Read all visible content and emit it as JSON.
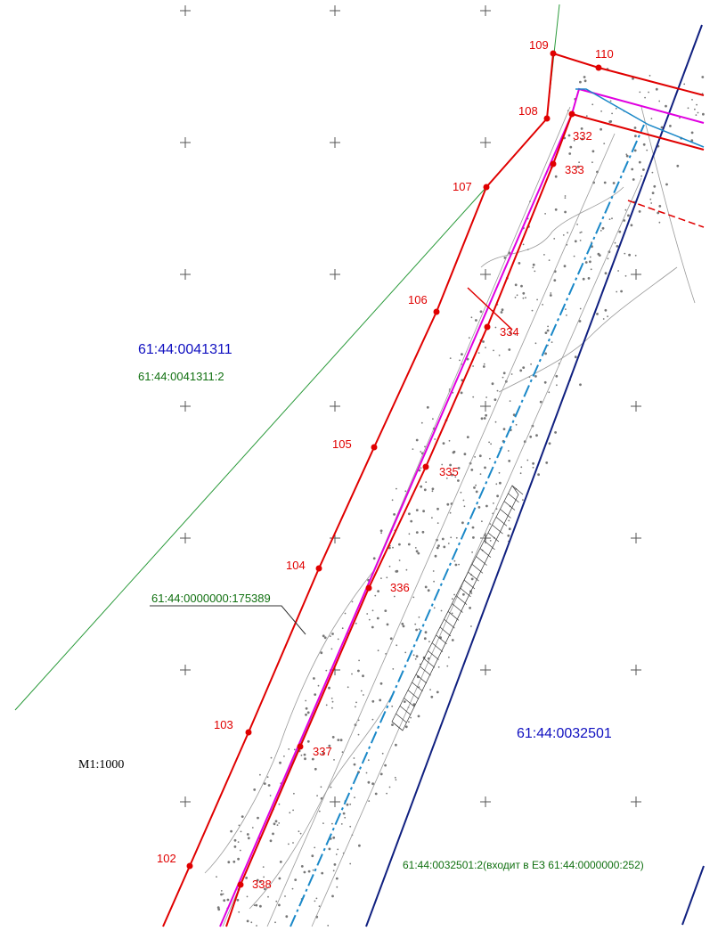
{
  "scale_label": "M1:1000",
  "parcels": {
    "west_block": "61:44:0041311",
    "west_parcel": "61:44:0041311:2",
    "strip_parcel": "61:44:0000000:175389",
    "east_block": "61:44:0032501",
    "east_parcel": "61:44:0032501:2(входит в ЕЗ 61:44:0000000:252)"
  },
  "point_labels": {
    "p102": "102",
    "p103": "103",
    "p104": "104",
    "p105": "105",
    "p106": "106",
    "p107": "107",
    "p108": "108",
    "p109": "109",
    "p110": "110",
    "p332": "332",
    "p333": "333",
    "p334": "334",
    "p335": "335",
    "p336": "336",
    "p337": "337",
    "p338": "338"
  },
  "colors": {
    "boundary_red": "#e00000",
    "magenta": "#e000e0",
    "navy": "#102080",
    "cyan_dash": "#1a88c8",
    "green": "#2a9a3a",
    "blue_text": "#1010c0",
    "green_text": "#107010"
  }
}
